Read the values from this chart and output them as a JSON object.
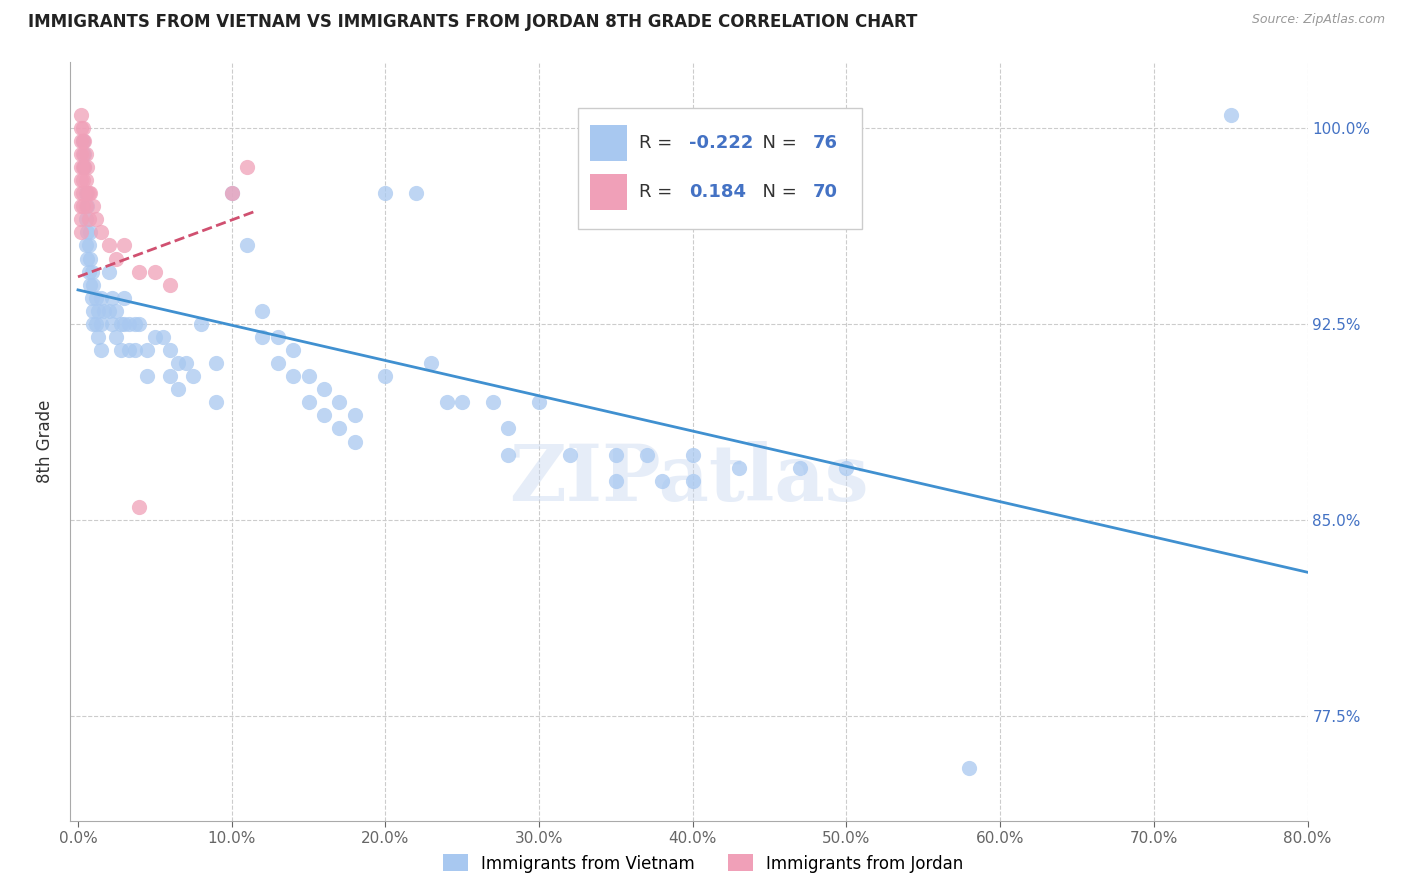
{
  "title": "IMMIGRANTS FROM VIETNAM VS IMMIGRANTS FROM JORDAN 8TH GRADE CORRELATION CHART",
  "source": "Source: ZipAtlas.com",
  "ylabel": "8th Grade",
  "y_tick_values": [
    0.775,
    0.85,
    0.925,
    1.0
  ],
  "y_tick_labels": [
    "77.5%",
    "85.0%",
    "92.5%",
    "100.0%"
  ],
  "x_tick_values": [
    0.0,
    0.1,
    0.2,
    0.3,
    0.4,
    0.5,
    0.6,
    0.7,
    0.8
  ],
  "x_tick_labels": [
    "0.0%",
    "10.0%",
    "20.0%",
    "30.0%",
    "40.0%",
    "50.0%",
    "60.0%",
    "70.0%",
    "80.0%"
  ],
  "xlim": [
    -0.005,
    0.8
  ],
  "ylim": [
    0.735,
    1.025
  ],
  "blue_color": "#A8C8F0",
  "pink_color": "#F0A0B8",
  "blue_line_color": "#4090D0",
  "pink_line_color": "#D05070",
  "watermark": "ZIPatlas",
  "legend_blue_R": "-0.222",
  "legend_blue_N": "76",
  "legend_pink_R": "0.184",
  "legend_pink_N": "70",
  "blue_points": [
    [
      0.003,
      0.995
    ],
    [
      0.004,
      0.99
    ],
    [
      0.004,
      0.985
    ],
    [
      0.005,
      0.975
    ],
    [
      0.005,
      0.965
    ],
    [
      0.005,
      0.955
    ],
    [
      0.006,
      0.97
    ],
    [
      0.006,
      0.96
    ],
    [
      0.006,
      0.95
    ],
    [
      0.007,
      0.955
    ],
    [
      0.007,
      0.945
    ],
    [
      0.008,
      0.96
    ],
    [
      0.008,
      0.95
    ],
    [
      0.008,
      0.94
    ],
    [
      0.009,
      0.945
    ],
    [
      0.009,
      0.935
    ],
    [
      0.01,
      0.94
    ],
    [
      0.01,
      0.93
    ],
    [
      0.01,
      0.925
    ],
    [
      0.012,
      0.935
    ],
    [
      0.012,
      0.925
    ],
    [
      0.013,
      0.93
    ],
    [
      0.013,
      0.92
    ],
    [
      0.015,
      0.935
    ],
    [
      0.015,
      0.925
    ],
    [
      0.015,
      0.915
    ],
    [
      0.017,
      0.93
    ],
    [
      0.02,
      0.945
    ],
    [
      0.02,
      0.93
    ],
    [
      0.022,
      0.935
    ],
    [
      0.022,
      0.925
    ],
    [
      0.025,
      0.93
    ],
    [
      0.025,
      0.92
    ],
    [
      0.028,
      0.925
    ],
    [
      0.028,
      0.915
    ],
    [
      0.03,
      0.935
    ],
    [
      0.03,
      0.925
    ],
    [
      0.033,
      0.925
    ],
    [
      0.033,
      0.915
    ],
    [
      0.037,
      0.925
    ],
    [
      0.037,
      0.915
    ],
    [
      0.04,
      0.925
    ],
    [
      0.045,
      0.915
    ],
    [
      0.045,
      0.905
    ],
    [
      0.05,
      0.92
    ],
    [
      0.055,
      0.92
    ],
    [
      0.06,
      0.915
    ],
    [
      0.06,
      0.905
    ],
    [
      0.065,
      0.91
    ],
    [
      0.065,
      0.9
    ],
    [
      0.07,
      0.91
    ],
    [
      0.075,
      0.905
    ],
    [
      0.08,
      0.925
    ],
    [
      0.09,
      0.91
    ],
    [
      0.09,
      0.895
    ],
    [
      0.1,
      0.975
    ],
    [
      0.11,
      0.955
    ],
    [
      0.12,
      0.93
    ],
    [
      0.12,
      0.92
    ],
    [
      0.13,
      0.92
    ],
    [
      0.13,
      0.91
    ],
    [
      0.14,
      0.915
    ],
    [
      0.14,
      0.905
    ],
    [
      0.15,
      0.905
    ],
    [
      0.15,
      0.895
    ],
    [
      0.16,
      0.9
    ],
    [
      0.16,
      0.89
    ],
    [
      0.17,
      0.895
    ],
    [
      0.17,
      0.885
    ],
    [
      0.18,
      0.89
    ],
    [
      0.18,
      0.88
    ],
    [
      0.2,
      0.975
    ],
    [
      0.2,
      0.905
    ],
    [
      0.22,
      0.975
    ],
    [
      0.23,
      0.91
    ],
    [
      0.24,
      0.895
    ],
    [
      0.25,
      0.895
    ],
    [
      0.27,
      0.895
    ],
    [
      0.28,
      0.885
    ],
    [
      0.28,
      0.875
    ],
    [
      0.3,
      0.895
    ],
    [
      0.32,
      0.875
    ],
    [
      0.35,
      0.875
    ],
    [
      0.35,
      0.865
    ],
    [
      0.37,
      0.875
    ],
    [
      0.38,
      0.865
    ],
    [
      0.4,
      0.875
    ],
    [
      0.4,
      0.865
    ],
    [
      0.43,
      0.87
    ],
    [
      0.47,
      0.87
    ],
    [
      0.5,
      0.87
    ],
    [
      0.58,
      0.755
    ],
    [
      0.75,
      1.005
    ]
  ],
  "pink_points": [
    [
      0.002,
      1.005
    ],
    [
      0.002,
      1.0
    ],
    [
      0.002,
      0.995
    ],
    [
      0.002,
      0.99
    ],
    [
      0.002,
      0.985
    ],
    [
      0.002,
      0.98
    ],
    [
      0.002,
      0.975
    ],
    [
      0.002,
      0.97
    ],
    [
      0.002,
      0.965
    ],
    [
      0.002,
      0.96
    ],
    [
      0.003,
      1.0
    ],
    [
      0.003,
      0.995
    ],
    [
      0.003,
      0.99
    ],
    [
      0.003,
      0.985
    ],
    [
      0.003,
      0.98
    ],
    [
      0.003,
      0.975
    ],
    [
      0.003,
      0.97
    ],
    [
      0.004,
      0.995
    ],
    [
      0.004,
      0.985
    ],
    [
      0.005,
      0.99
    ],
    [
      0.005,
      0.98
    ],
    [
      0.005,
      0.97
    ],
    [
      0.006,
      0.985
    ],
    [
      0.006,
      0.975
    ],
    [
      0.007,
      0.975
    ],
    [
      0.007,
      0.965
    ],
    [
      0.008,
      0.975
    ],
    [
      0.01,
      0.97
    ],
    [
      0.012,
      0.965
    ],
    [
      0.015,
      0.96
    ],
    [
      0.02,
      0.955
    ],
    [
      0.025,
      0.95
    ],
    [
      0.03,
      0.955
    ],
    [
      0.04,
      0.945
    ],
    [
      0.05,
      0.945
    ],
    [
      0.06,
      0.94
    ],
    [
      0.1,
      0.975
    ],
    [
      0.11,
      0.985
    ],
    [
      0.04,
      0.855
    ]
  ],
  "blue_trendline_x": [
    0.0,
    0.8
  ],
  "blue_trendline_y": [
    0.938,
    0.83
  ],
  "pink_trendline_x": [
    0.0,
    0.115
  ],
  "pink_trendline_y": [
    0.943,
    0.968
  ]
}
